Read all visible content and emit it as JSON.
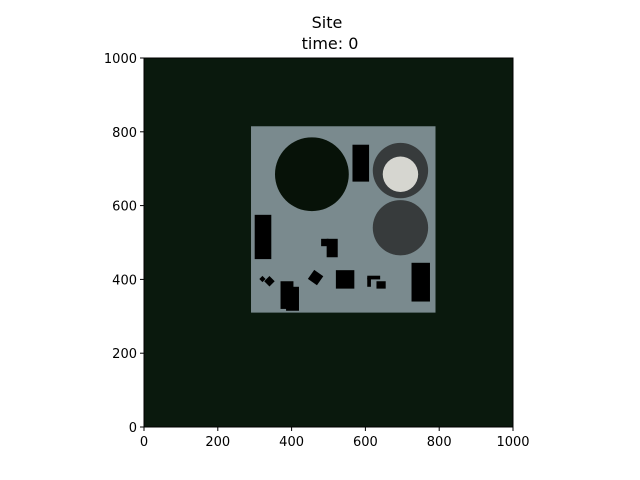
{
  "chart_data": {
    "type": "heatmap",
    "title": "Site",
    "subtitle": "time: 0",
    "xlabel": "",
    "ylabel": "",
    "xlim": [
      0,
      1000
    ],
    "ylim": [
      0,
      1000
    ],
    "x_ticks": [
      0,
      200,
      400,
      600,
      800,
      1000
    ],
    "y_ticks": [
      0,
      200,
      400,
      600,
      800,
      1000
    ],
    "grid": false,
    "background_color": "#0a190d",
    "site": {
      "x": 290,
      "y": 310,
      "w": 500,
      "h": 505,
      "color": "#7a8a8e"
    },
    "features": [
      {
        "name": "large-dark-circle",
        "shape": "circle",
        "cx": 455,
        "cy": 685,
        "r": 100,
        "color": "#071208"
      },
      {
        "name": "upper-right-gray-circle",
        "shape": "circle",
        "cx": 695,
        "cy": 695,
        "r": 75,
        "color": "#373b3c"
      },
      {
        "name": "upper-right-light-circle",
        "shape": "circle",
        "cx": 695,
        "cy": 685,
        "r": 48,
        "color": "#d6d6d0"
      },
      {
        "name": "lower-right-gray-circle",
        "shape": "circle",
        "cx": 695,
        "cy": 540,
        "r": 75,
        "color": "#373b3c"
      },
      {
        "name": "tall-block-upper",
        "shape": "rect",
        "x": 565,
        "y": 665,
        "w": 45,
        "h": 100,
        "color": "#000000"
      },
      {
        "name": "left-block",
        "shape": "rect",
        "x": 300,
        "y": 455,
        "w": 45,
        "h": 120,
        "color": "#000000"
      },
      {
        "name": "center-block-upper",
        "shape": "rect",
        "x": 480,
        "y": 490,
        "w": 20,
        "h": 20,
        "color": "#000000"
      },
      {
        "name": "center-block-lower",
        "shape": "rect",
        "x": 495,
        "y": 460,
        "w": 30,
        "h": 50,
        "color": "#000000"
      },
      {
        "name": "right-tall-block",
        "shape": "rect",
        "x": 725,
        "y": 340,
        "w": 50,
        "h": 105,
        "color": "#000000"
      },
      {
        "name": "middle-square",
        "shape": "rect",
        "x": 520,
        "y": 375,
        "w": 50,
        "h": 50,
        "color": "#000000"
      },
      {
        "name": "small-bracket-top",
        "shape": "rect",
        "x": 605,
        "y": 400,
        "w": 35,
        "h": 10,
        "color": "#000000"
      },
      {
        "name": "small-bracket-side",
        "shape": "rect",
        "x": 605,
        "y": 380,
        "w": 10,
        "h": 25,
        "color": "#000000"
      },
      {
        "name": "small-block-right",
        "shape": "rect",
        "x": 630,
        "y": 375,
        "w": 25,
        "h": 20,
        "color": "#000000"
      },
      {
        "name": "lower-left-block-a",
        "shape": "rect",
        "x": 370,
        "y": 320,
        "w": 35,
        "h": 75,
        "color": "#000000"
      },
      {
        "name": "lower-left-block-b",
        "shape": "rect",
        "x": 385,
        "y": 315,
        "w": 35,
        "h": 65,
        "color": "#000000"
      },
      {
        "name": "tilted-block",
        "shape": "rect",
        "x": 450,
        "y": 390,
        "w": 30,
        "h": 30,
        "rotate": 35,
        "color": "#000000"
      },
      {
        "name": "diamond-small",
        "shape": "rect",
        "x": 315,
        "y": 395,
        "w": 12,
        "h": 12,
        "rotate": 45,
        "color": "#000000"
      },
      {
        "name": "diamond-large",
        "shape": "rect",
        "x": 330,
        "y": 385,
        "w": 20,
        "h": 20,
        "rotate": 45,
        "color": "#000000"
      }
    ]
  }
}
